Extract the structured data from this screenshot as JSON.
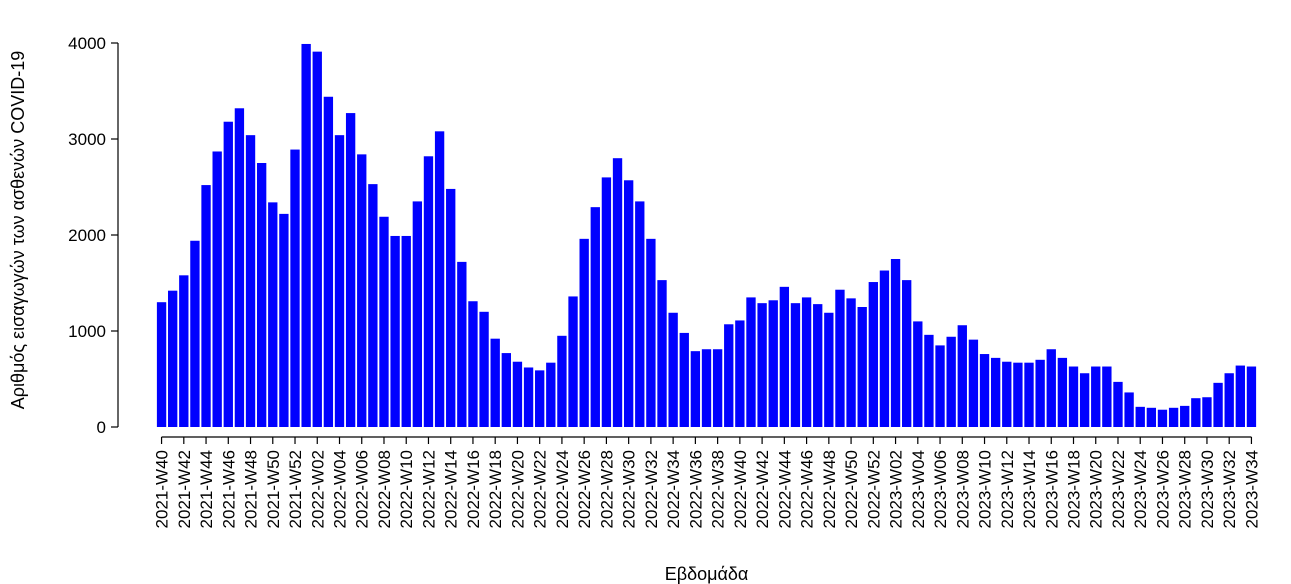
{
  "chart_data": {
    "type": "bar",
    "title": "",
    "xlabel": "Εβδομάδα",
    "ylabel": "Αριθμός εισαγωγών των ασθενών COVID-19",
    "ylim": [
      0,
      4000
    ],
    "yticks": [
      0,
      1000,
      2000,
      3000,
      4000
    ],
    "bar_color": "#0000ff",
    "grid": false,
    "categories": [
      "2021-W40",
      "2021-W41",
      "2021-W42",
      "2021-W43",
      "2021-W44",
      "2021-W45",
      "2021-W46",
      "2021-W47",
      "2021-W48",
      "2021-W49",
      "2021-W50",
      "2021-W51",
      "2021-W52",
      "2022-W01",
      "2022-W02",
      "2022-W03",
      "2022-W04",
      "2022-W05",
      "2022-W06",
      "2022-W07",
      "2022-W08",
      "2022-W09",
      "2022-W10",
      "2022-W11",
      "2022-W12",
      "2022-W13",
      "2022-W14",
      "2022-W15",
      "2022-W16",
      "2022-W17",
      "2022-W18",
      "2022-W19",
      "2022-W20",
      "2022-W21",
      "2022-W22",
      "2022-W23",
      "2022-W24",
      "2022-W25",
      "2022-W26",
      "2022-W27",
      "2022-W28",
      "2022-W29",
      "2022-W30",
      "2022-W31",
      "2022-W32",
      "2022-W33",
      "2022-W34",
      "2022-W35",
      "2022-W36",
      "2022-W37",
      "2022-W38",
      "2022-W39",
      "2022-W40",
      "2022-W41",
      "2022-W42",
      "2022-W43",
      "2022-W44",
      "2022-W45",
      "2022-W46",
      "2022-W47",
      "2022-W48",
      "2022-W49",
      "2022-W50",
      "2022-W51",
      "2022-W52",
      "2023-W01",
      "2023-W02",
      "2023-W03",
      "2023-W04",
      "2023-W05",
      "2023-W06",
      "2023-W07",
      "2023-W08",
      "2023-W09",
      "2023-W10",
      "2023-W11",
      "2023-W12",
      "2023-W13",
      "2023-W14",
      "2023-W15",
      "2023-W16",
      "2023-W17",
      "2023-W18",
      "2023-W19",
      "2023-W20",
      "2023-W21",
      "2023-W22",
      "2023-W23",
      "2023-W24",
      "2023-W25",
      "2023-W26",
      "2023-W27",
      "2023-W28",
      "2023-W29",
      "2023-W30",
      "2023-W31",
      "2023-W32",
      "2023-W33",
      "2023-W34"
    ],
    "tick_labels": [
      "2021-W40",
      "2021-W42",
      "2021-W44",
      "2021-W46",
      "2021-W48",
      "2021-W50",
      "2021-W52",
      "2022-W02",
      "2022-W04",
      "2022-W06",
      "2022-W08",
      "2022-W10",
      "2022-W12",
      "2022-W14",
      "2022-W16",
      "2022-W18",
      "2022-W20",
      "2022-W22",
      "2022-W24",
      "2022-W26",
      "2022-W28",
      "2022-W30",
      "2022-W32",
      "2022-W34",
      "2022-W36",
      "2022-W38",
      "2022-W40",
      "2022-W42",
      "2022-W44",
      "2022-W46",
      "2022-W48",
      "2022-W50",
      "2022-W52",
      "2023-W02",
      "2023-W04",
      "2023-W06",
      "2023-W08",
      "2023-W10",
      "2023-W12",
      "2023-W14",
      "2023-W16",
      "2023-W18",
      "2023-W20",
      "2023-W22",
      "2023-W24",
      "2023-W26",
      "2023-W28",
      "2023-W30",
      "2023-W32",
      "2023-W34"
    ],
    "values": [
      1300,
      1420,
      1580,
      1940,
      2520,
      2870,
      3180,
      3320,
      3040,
      2750,
      2340,
      2220,
      2890,
      3990,
      3910,
      3440,
      3040,
      3270,
      2840,
      2530,
      2190,
      1990,
      1990,
      2350,
      2820,
      3080,
      2480,
      1720,
      1310,
      1200,
      920,
      770,
      680,
      620,
      590,
      670,
      950,
      1360,
      1960,
      2290,
      2600,
      2800,
      2570,
      2350,
      1960,
      1530,
      1190,
      980,
      790,
      810,
      810,
      1070,
      1110,
      1350,
      1290,
      1320,
      1460,
      1290,
      1350,
      1280,
      1190,
      1430,
      1340,
      1250,
      1510,
      1630,
      1750,
      1530,
      1100,
      960,
      850,
      940,
      1060,
      910,
      760,
      720,
      680,
      670,
      670,
      700,
      810,
      720,
      630,
      560,
      630,
      630,
      470,
      360,
      210,
      200,
      180,
      200,
      220,
      300,
      310,
      460,
      560,
      640,
      630
    ]
  }
}
